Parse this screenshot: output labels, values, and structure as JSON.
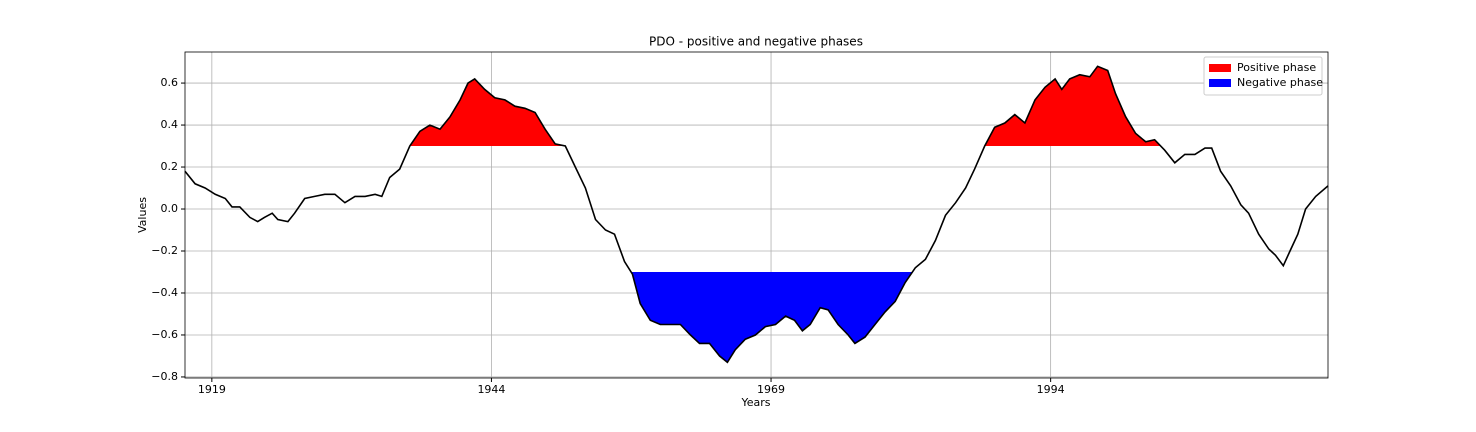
{
  "chart_data": {
    "type": "line",
    "title": "PDO - positive and negative phases",
    "xlabel": "Years",
    "ylabel": "Values",
    "x": [
      1916.6,
      1917.5,
      1918.4,
      1919.3,
      1920.2,
      1920.8,
      1921.5,
      1922.4,
      1923.1,
      1923.7,
      1924.4,
      1924.9,
      1925.8,
      1926.4,
      1927.3,
      1928.2,
      1929.1,
      1930.0,
      1930.9,
      1931.8,
      1932.7,
      1933.6,
      1934.2,
      1934.9,
      1935.8,
      1936.7,
      1937.6,
      1938.5,
      1939.4,
      1940.3,
      1941.2,
      1941.9,
      1942.5,
      1943.4,
      1944.3,
      1945.2,
      1946.1,
      1947.0,
      1947.9,
      1948.8,
      1949.7,
      1950.6,
      1951.5,
      1952.4,
      1953.3,
      1954.2,
      1955.0,
      1955.9,
      1956.6,
      1957.3,
      1958.2,
      1959.1,
      1960.0,
      1960.9,
      1961.8,
      1962.6,
      1963.5,
      1964.4,
      1965.1,
      1965.8,
      1966.7,
      1967.6,
      1968.5,
      1969.4,
      1970.3,
      1971.1,
      1971.8,
      1972.5,
      1973.4,
      1974.1,
      1975.0,
      1975.9,
      1976.5,
      1977.4,
      1978.3,
      1979.2,
      1980.1,
      1981.0,
      1981.9,
      1982.8,
      1983.7,
      1984.6,
      1985.5,
      1986.4,
      1987.2,
      1988.1,
      1989.0,
      1989.9,
      1990.8,
      1991.7,
      1992.6,
      1993.5,
      1994.4,
      1995.0,
      1995.7,
      1996.6,
      1997.5,
      1998.2,
      1999.1,
      1999.8,
      2000.7,
      2001.6,
      2002.5,
      2003.3,
      2004.2,
      2005.1,
      2006.0,
      2006.9,
      2007.8,
      2008.4,
      2009.2,
      2010.1,
      2011.0,
      2011.7,
      2012.6,
      2013.5,
      2014.1,
      2014.8,
      2015.4,
      2016.1,
      2016.8,
      2017.7,
      2018.8
    ],
    "series": [
      {
        "color": "#000000",
        "values": [
          0.18,
          0.12,
          0.1,
          0.07,
          0.05,
          0.01,
          0.01,
          -0.04,
          -0.06,
          -0.04,
          -0.02,
          -0.05,
          -0.06,
          -0.02,
          0.05,
          0.06,
          0.07,
          0.07,
          0.03,
          0.06,
          0.06,
          0.07,
          0.06,
          0.15,
          0.19,
          0.3,
          0.37,
          0.4,
          0.38,
          0.44,
          0.52,
          0.6,
          0.62,
          0.57,
          0.53,
          0.52,
          0.49,
          0.48,
          0.46,
          0.38,
          0.31,
          0.3,
          0.2,
          0.1,
          -0.05,
          -0.1,
          -0.12,
          -0.25,
          -0.31,
          -0.45,
          -0.53,
          -0.55,
          -0.55,
          -0.55,
          -0.6,
          -0.64,
          -0.64,
          -0.7,
          -0.73,
          -0.67,
          -0.62,
          -0.6,
          -0.56,
          -0.55,
          -0.51,
          -0.53,
          -0.58,
          -0.55,
          -0.47,
          -0.48,
          -0.55,
          -0.6,
          -0.64,
          -0.61,
          -0.55,
          -0.49,
          -0.44,
          -0.35,
          -0.28,
          -0.24,
          -0.15,
          -0.03,
          0.03,
          0.1,
          0.19,
          0.3,
          0.39,
          0.41,
          0.45,
          0.41,
          0.52,
          0.58,
          0.62,
          0.57,
          0.62,
          0.64,
          0.63,
          0.68,
          0.66,
          0.55,
          0.44,
          0.36,
          0.32,
          0.33,
          0.28,
          0.22,
          0.26,
          0.26,
          0.29,
          0.29,
          0.18,
          0.11,
          0.02,
          -0.02,
          -0.12,
          -0.19,
          -0.22,
          -0.27,
          -0.2,
          -0.12,
          0.0,
          0.06,
          0.11
        ]
      }
    ],
    "fills": [
      {
        "name": "Positive phase",
        "color": "#ff0000",
        "threshold": 0.3,
        "side": "above"
      },
      {
        "name": "Negative phase",
        "color": "#0000ff",
        "threshold": -0.3,
        "side": "below"
      }
    ],
    "xlim": [
      1916.6,
      2018.8
    ],
    "xticks": [
      1919,
      1944,
      1969,
      1994
    ],
    "ylim": [
      -0.805,
      0.748
    ],
    "yticks": [
      {
        "value": -0.8,
        "label": "−0.8"
      },
      {
        "value": -0.6,
        "label": "−0.6"
      },
      {
        "value": -0.4,
        "label": "−0.4"
      },
      {
        "value": -0.2,
        "label": "−0.2"
      },
      {
        "value": 0,
        "label": "0.0"
      },
      0.2,
      0.4,
      0.6
    ],
    "grid": true,
    "legend": "upper right"
  }
}
